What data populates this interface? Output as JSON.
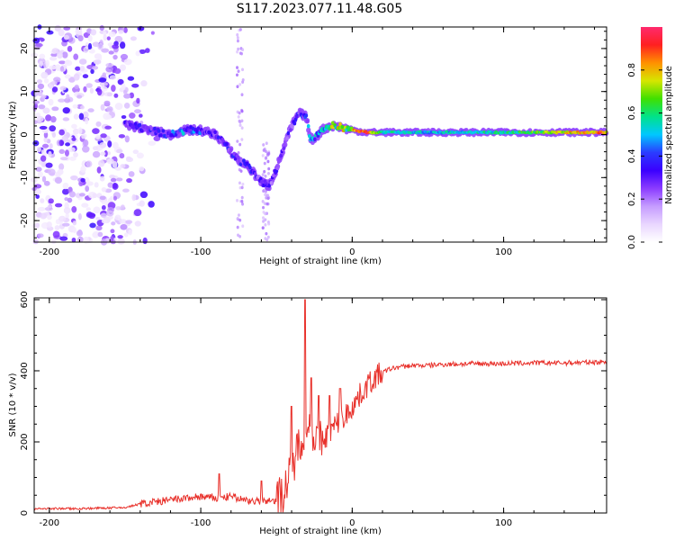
{
  "figure_title": "S117.2023.077.11.48.G05",
  "colors": {
    "snr_line": "#e8302a",
    "colormap": [
      "#ffffff",
      "#e9d6ff",
      "#c59cff",
      "#8b3bff",
      "#3a00ff",
      "#2a3cff",
      "#00c8ff",
      "#00e28a",
      "#40e000",
      "#d6e600",
      "#ff9000",
      "#ff2020",
      "#ff2a6e"
    ]
  },
  "chart_data": [
    {
      "type": "heatmap",
      "title": "S117.2023.077.11.48.G05",
      "xlabel": "Height of straight line (km)",
      "ylabel": "Frequency (Hz)",
      "xlim": [
        -210,
        168
      ],
      "ylim": [
        -25,
        25
      ],
      "xticks": [
        -200,
        -100,
        0,
        100
      ],
      "xtick_labels": [
        "-200",
        "-100",
        "0",
        "100"
      ],
      "yticks": [
        -20,
        -10,
        0,
        10,
        20
      ],
      "ytick_labels": [
        "-20",
        "-10",
        "0",
        "10",
        "20"
      ],
      "colorbar": {
        "label": "Normalized spectral amplitude",
        "range": [
          0,
          1
        ],
        "ticks": [
          0.0,
          0.2,
          0.4,
          0.6,
          0.8
        ],
        "tick_labels": [
          "0.0",
          "0.2",
          "0.4",
          "0.6",
          "0.8"
        ]
      },
      "ridge": {
        "x": [
          -150,
          -135,
          -120,
          -110,
          -100,
          -90,
          -80,
          -75,
          -70,
          -65,
          -60,
          -55,
          -50,
          -45,
          -40,
          -35,
          -30,
          -28,
          -25,
          -20,
          -15,
          -10,
          -5,
          0,
          10,
          20,
          50,
          100,
          150,
          168
        ],
        "y": [
          2.5,
          1,
          0,
          1,
          1,
          0,
          -4,
          -6,
          -7,
          -9,
          -11,
          -12,
          -8,
          -3,
          2,
          5,
          4,
          -1,
          -1,
          1,
          2,
          2,
          1.5,
          1,
          0.5,
          0.5,
          0.5,
          0.5,
          0.5,
          0.5
        ],
        "peak_amplitude": [
          0.3,
          0.35,
          0.4,
          0.45,
          0.4,
          0.35,
          0.35,
          0.35,
          0.35,
          0.35,
          0.3,
          0.3,
          0.3,
          0.3,
          0.3,
          0.35,
          0.4,
          0.45,
          0.5,
          0.6,
          0.65,
          0.7,
          0.75,
          0.85,
          0.9,
          0.55,
          0.5,
          0.55,
          0.8,
          0.85
        ]
      },
      "noise_region_x": [
        -210,
        -125
      ],
      "grid": false
    },
    {
      "type": "line",
      "title": "",
      "xlabel": "Height of straight line (km)",
      "ylabel": "SNR (10 * v/v)",
      "xlim": [
        -210,
        168
      ],
      "ylim": [
        0,
        605
      ],
      "xticks": [
        -200,
        -100,
        0,
        100
      ],
      "xtick_labels": [
        "-200",
        "-100",
        "0",
        "100"
      ],
      "yticks": [
        0,
        200,
        400,
        600
      ],
      "ytick_labels": [
        "0",
        "200",
        "400",
        "600"
      ],
      "series": [
        {
          "x": [
            -210,
            -180,
            -150,
            -140,
            -130,
            -120,
            -110,
            -100,
            -90,
            -80,
            -70,
            -60,
            -50,
            -45,
            -40,
            -35,
            -30,
            -25,
            -20,
            -15,
            -10,
            -5,
            0,
            5,
            10,
            15,
            20,
            25,
            30,
            40,
            50,
            60,
            80,
            100,
            120,
            140,
            168
          ],
          "values": [
            12,
            12,
            15,
            25,
            30,
            35,
            40,
            45,
            40,
            45,
            35,
            30,
            35,
            60,
            120,
            200,
            250,
            220,
            200,
            230,
            250,
            270,
            300,
            330,
            360,
            380,
            395,
            405,
            410,
            415,
            415,
            418,
            420,
            420,
            422,
            422,
            425
          ],
          "spikes": [
            {
              "x": -88,
              "value": 110
            },
            {
              "x": -60,
              "value": 90
            },
            {
              "x": -40,
              "value": 300
            },
            {
              "x": -31,
              "value": 600
            },
            {
              "x": -27,
              "value": 380
            },
            {
              "x": -22,
              "value": 330
            },
            {
              "x": -15,
              "value": 330
            },
            {
              "x": -8,
              "value": 350
            }
          ]
        }
      ],
      "grid": false
    }
  ]
}
